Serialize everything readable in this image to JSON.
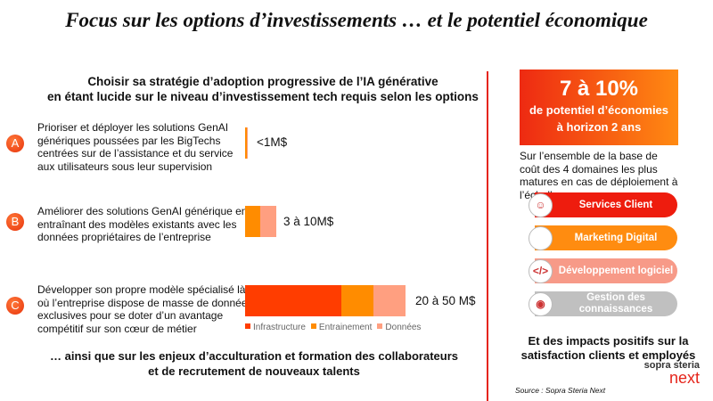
{
  "title": "Focus sur les options d’investissements … et le potentiel économique",
  "subtitle": [
    "Choisir sa stratégie d’adoption progressive de l’IA générative",
    "en étant lucide sur le niveau d’investissement tech requis selon les options"
  ],
  "colors": {
    "infrastructure": "#ff3d00",
    "entrainement": "#ff8c00",
    "donnees": "#ff9f80",
    "accent": "#e5251b"
  },
  "options": [
    {
      "badge": "A",
      "text": "Prioriser et déployer les solutions GenAI génériques poussées par les BigTechs centrées sur de l’assistance et du service aux utilisateurs sous leur supervision",
      "cost": "<1M$",
      "segments": {
        "infrastructure": 0,
        "entrainement": 0.5,
        "donnees": 0.5
      }
    },
    {
      "badge": "B",
      "text": "Améliorer des solutions GenAI générique en entraînant des modèles existants avec les données propriétaires de l’entreprise",
      "cost": "3 à 10M$",
      "segments": {
        "infrastructure": 0,
        "entrainement": 5.5,
        "donnees": 6
      }
    },
    {
      "badge": "C",
      "text": "Développer son propre modèle spécialisé là où l’entreprise dispose de masse de données exclusives pour se doter d’un avantage compétitif sur son cœur de métier",
      "cost": "20 à 50 M$",
      "segments": {
        "infrastructure": 36,
        "entrainement": 12,
        "donnees": 12
      }
    }
  ],
  "legend": [
    "Infrastructure",
    "Entrainement",
    "Données"
  ],
  "footer": [
    "… ainsi que sur les enjeux d’acculturation et formation des collaborateurs",
    "et de recrutement de nouveaux talents"
  ],
  "kpi": {
    "value": "7 à 10%",
    "line1": "de potentiel d’économies",
    "line2": "à horizon 2 ans"
  },
  "kpi_desc": "Sur l’ensemble de la base de coût des 4 domaines les plus matures en cas de déploiement à l’échelle",
  "domains": [
    {
      "label": "Services Client",
      "color": "#ee1c0e",
      "icon": "customer-service-icon"
    },
    {
      "label": "Marketing Digital",
      "color": "#ff8c10",
      "icon": "marketing-icon"
    },
    {
      "label": "Développement logiciel",
      "color": "#f79a88",
      "icon": "code-icon"
    },
    {
      "label": "Gestion des connaissances",
      "color": "#c0c0c0",
      "icon": "eye-icon"
    }
  ],
  "impacts": "Et des impacts positifs sur la satisfaction clients et employés",
  "logo": {
    "top": "sopra steria",
    "bottom": "next"
  },
  "source": "Source  : Sopra Steria Next"
}
